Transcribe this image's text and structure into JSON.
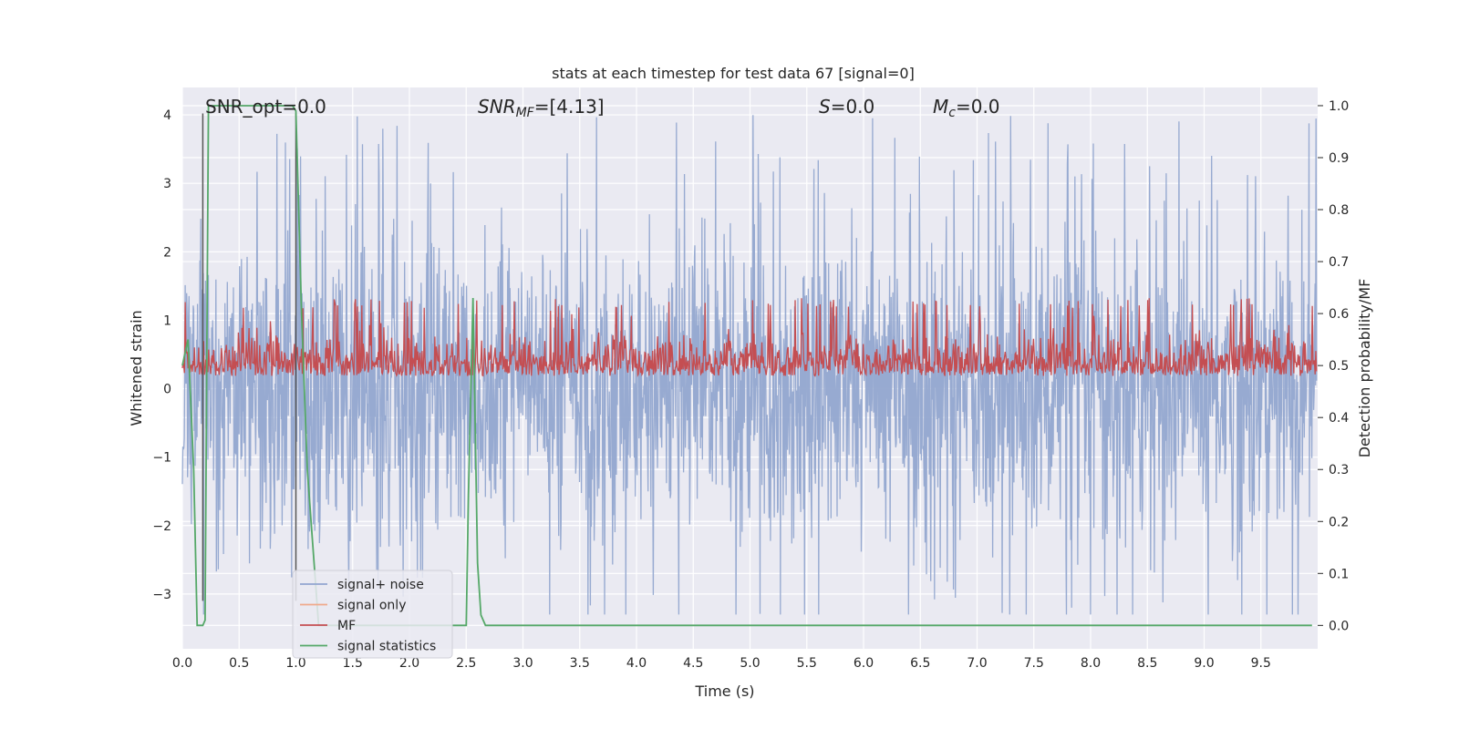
{
  "chart_data": {
    "type": "line",
    "title": "stats at each timestep for test data 67 [signal=0]",
    "xlabel": "Time (s)",
    "ylabel_left": "Whitened strain",
    "ylabel_right": "Detection probability/MF",
    "xlim": [
      0.0,
      10.0
    ],
    "ylim_left": [
      -3.8,
      4.4
    ],
    "ylim_right": [
      -0.045,
      1.035
    ],
    "xticks": [
      "0.0",
      "0.5",
      "1.0",
      "1.5",
      "2.0",
      "2.5",
      "3.0",
      "3.5",
      "4.0",
      "4.5",
      "5.0",
      "5.5",
      "6.0",
      "6.5",
      "7.0",
      "7.5",
      "8.0",
      "8.5",
      "9.0",
      "9.5"
    ],
    "yticks_left": [
      "−3",
      "−2",
      "−1",
      "0",
      "1",
      "2",
      "3",
      "4"
    ],
    "yticks_right": [
      "0.0",
      "0.1",
      "0.2",
      "0.3",
      "0.4",
      "0.5",
      "0.6",
      "0.7",
      "0.8",
      "0.9",
      "1.0"
    ],
    "grid": true,
    "annotations": {
      "snr_opt": "SNR_opt=0.0",
      "snr_mf_name": "SNR",
      "snr_mf_sub": "MF",
      "snr_mf_value": "=[4.13]",
      "s_name": "S",
      "s_value": "=0.0",
      "mc_name": "M",
      "mc_sub": "c",
      "mc_value": "=0.0"
    },
    "legend_position": "lower-left",
    "series": [
      {
        "name": "signal+ noise",
        "axis": "left",
        "color": "#92a6cf",
        "noise_envelope": {
          "typical": [
            -1.7,
            1.7
          ],
          "extreme": [
            -3.3,
            4.0
          ]
        }
      },
      {
        "name": "signal only",
        "axis": "left",
        "color": "#f0a98b",
        "values": []
      },
      {
        "name": "MF",
        "axis": "right",
        "color": "#c44e52",
        "band": [
          0.46,
          0.63
        ]
      },
      {
        "name": "signal statistics",
        "axis": "right",
        "color": "#55a868",
        "x": [
          0.0,
          0.05,
          0.1,
          0.13,
          0.18,
          0.2,
          0.23,
          0.27,
          0.4,
          0.6,
          0.8,
          0.97,
          1.0,
          1.05,
          1.1,
          1.2,
          1.5,
          2.0,
          2.4,
          2.5,
          2.52,
          2.56,
          2.6,
          2.63,
          2.67,
          3.0,
          5.0,
          8.0,
          9.95
        ],
        "values": [
          0.5,
          0.55,
          0.3,
          0.0,
          0.0,
          0.01,
          1.0,
          1.0,
          1.0,
          1.0,
          1.0,
          1.0,
          0.99,
          0.6,
          0.3,
          0.0,
          0.0,
          0.0,
          0.0,
          0.0,
          0.25,
          0.63,
          0.12,
          0.02,
          0.0,
          0.0,
          0.0,
          0.0,
          0.0
        ]
      },
      {
        "name": "",
        "axis": "left",
        "color": "#555555",
        "vertical_lines_x": [
          0.18,
          1.0
        ]
      }
    ]
  }
}
